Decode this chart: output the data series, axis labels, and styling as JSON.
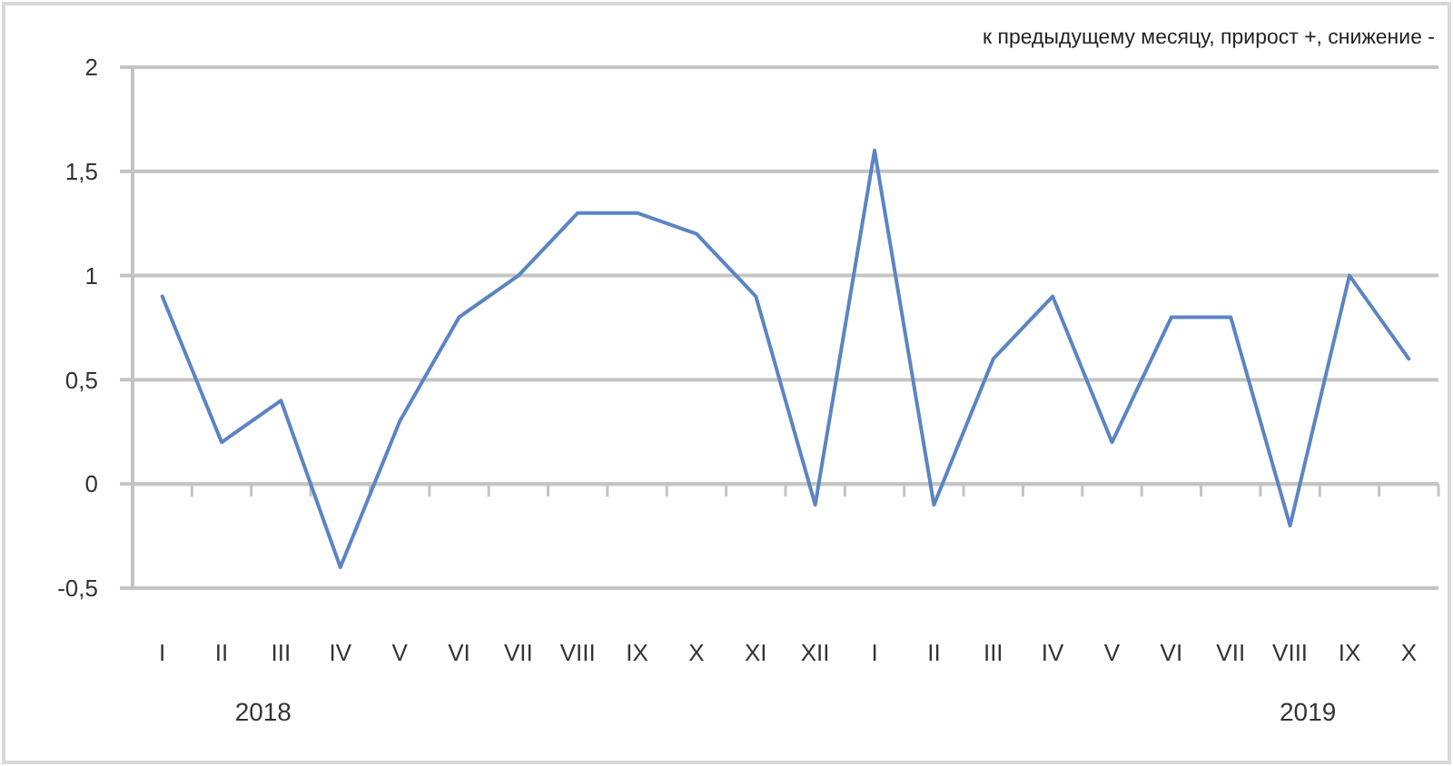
{
  "chart_data": {
    "type": "line",
    "title": "к предыдущему месяцу, прирост +, снижение -",
    "categories": [
      "I",
      "II",
      "III",
      "IV",
      "V",
      "VI",
      "VII",
      "VIII",
      "IX",
      "X",
      "XI",
      "XII",
      "I",
      "II",
      "III",
      "IV",
      "V",
      "VI",
      "VII",
      "VIII",
      "IX",
      "X"
    ],
    "values": [
      0.9,
      0.2,
      0.4,
      -0.4,
      0.3,
      0.8,
      1.0,
      1.3,
      1.3,
      1.2,
      0.9,
      -0.1,
      1.6,
      -0.1,
      0.6,
      0.9,
      0.2,
      0.8,
      0.8,
      -0.2,
      1.0,
      0.6
    ],
    "color": "#5b84c4",
    "ylim": [
      -0.5,
      2
    ],
    "yticks": [
      {
        "value": -0.5,
        "label": "-0,5"
      },
      0,
      {
        "value": 0.5,
        "label": "0,5"
      },
      1,
      {
        "value": 1.5,
        "label": "1,5"
      },
      2
    ],
    "grid": "y",
    "annotations": [
      "2018",
      "2019"
    ]
  }
}
